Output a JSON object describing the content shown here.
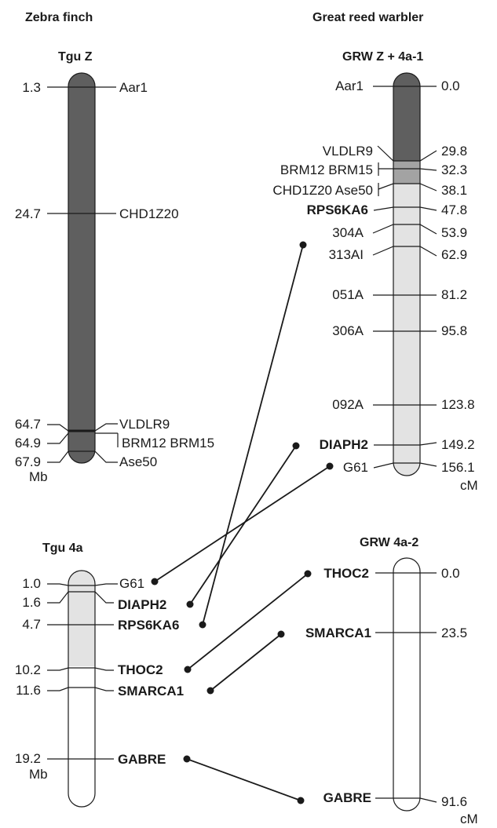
{
  "species": {
    "left": "Zebra finch",
    "right": "Great reed warbler"
  },
  "tgu_z": {
    "title": "Tgu Z",
    "unit": "Mb",
    "markers": [
      {
        "pos": "1.3",
        "label": "Aar1"
      },
      {
        "pos": "24.7",
        "label": "CHD1Z20"
      },
      {
        "pos": "64.7",
        "label": "VLDLR9"
      },
      {
        "pos": "64.9",
        "label": "BRM12 BRM15"
      },
      {
        "pos": "67.9",
        "label": "Ase50"
      }
    ]
  },
  "grw_z": {
    "title": "GRW Z + 4a-1",
    "unit": "cM",
    "markers": [
      {
        "pos": "0.0",
        "label": "Aar1"
      },
      {
        "pos": "29.8",
        "label": "VLDLR9"
      },
      {
        "pos": "32.3",
        "label": "BRM12 BRM15"
      },
      {
        "pos": "38.1",
        "label": "CHD1Z20 Ase50"
      },
      {
        "pos": "47.8",
        "label": "RPS6KA6"
      },
      {
        "pos": "53.9",
        "label": "304A"
      },
      {
        "pos": "62.9",
        "label": "313AI"
      },
      {
        "pos": "81.2",
        "label": "051A"
      },
      {
        "pos": "95.8",
        "label": "306A"
      },
      {
        "pos": "123.8",
        "label": "092A"
      },
      {
        "pos": "149.2",
        "label": "DIAPH2"
      },
      {
        "pos": "156.1",
        "label": "G61"
      }
    ]
  },
  "tgu_4a": {
    "title": "Tgu 4a",
    "unit": "Mb",
    "markers": [
      {
        "pos": "1.0",
        "label": "G61"
      },
      {
        "pos": "1.6",
        "label": "DIAPH2"
      },
      {
        "pos": "4.7",
        "label": "RPS6KA6"
      },
      {
        "pos": "10.2",
        "label": "THOC2"
      },
      {
        "pos": "11.6",
        "label": "SMARCA1"
      },
      {
        "pos": "19.2",
        "label": "GABRE"
      }
    ]
  },
  "grw_4a2": {
    "title": "GRW 4a-2",
    "unit": "cM",
    "markers": [
      {
        "pos": "0.0",
        "label": "THOC2"
      },
      {
        "pos": "23.5",
        "label": "SMARCA1"
      },
      {
        "pos": "91.6",
        "label": "GABRE"
      }
    ]
  },
  "colors": {
    "dark_segment": "#5f5f5f",
    "mid_segment": "#a3a3a3",
    "light_segment": "#e3e3e3",
    "outline": "#1a1a1a"
  }
}
